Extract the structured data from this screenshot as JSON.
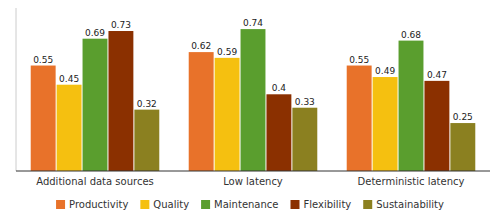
{
  "chart_data": {
    "type": "bar",
    "categories": [
      "Additional data sources",
      "Low latency",
      "Deterministic latency"
    ],
    "series": [
      {
        "name": "Productivity",
        "color": "#E8722A",
        "values": [
          0.55,
          0.62,
          0.55
        ]
      },
      {
        "name": "Quality",
        "color": "#F5C010",
        "values": [
          0.45,
          0.59,
          0.49
        ]
      },
      {
        "name": "Maintenance",
        "color": "#5A9E2E",
        "values": [
          0.69,
          0.74,
          0.68
        ]
      },
      {
        "name": "Flexibility",
        "color": "#8B3000",
        "values": [
          0.73,
          0.4,
          0.47
        ]
      },
      {
        "name": "Sustainability",
        "color": "#8B8020",
        "values": [
          0.32,
          0.33,
          0.25
        ]
      }
    ],
    "ylim": [
      0,
      0.85
    ],
    "data_labels": true,
    "tick_labels": "x",
    "legend": "bottom",
    "grid": false
  }
}
